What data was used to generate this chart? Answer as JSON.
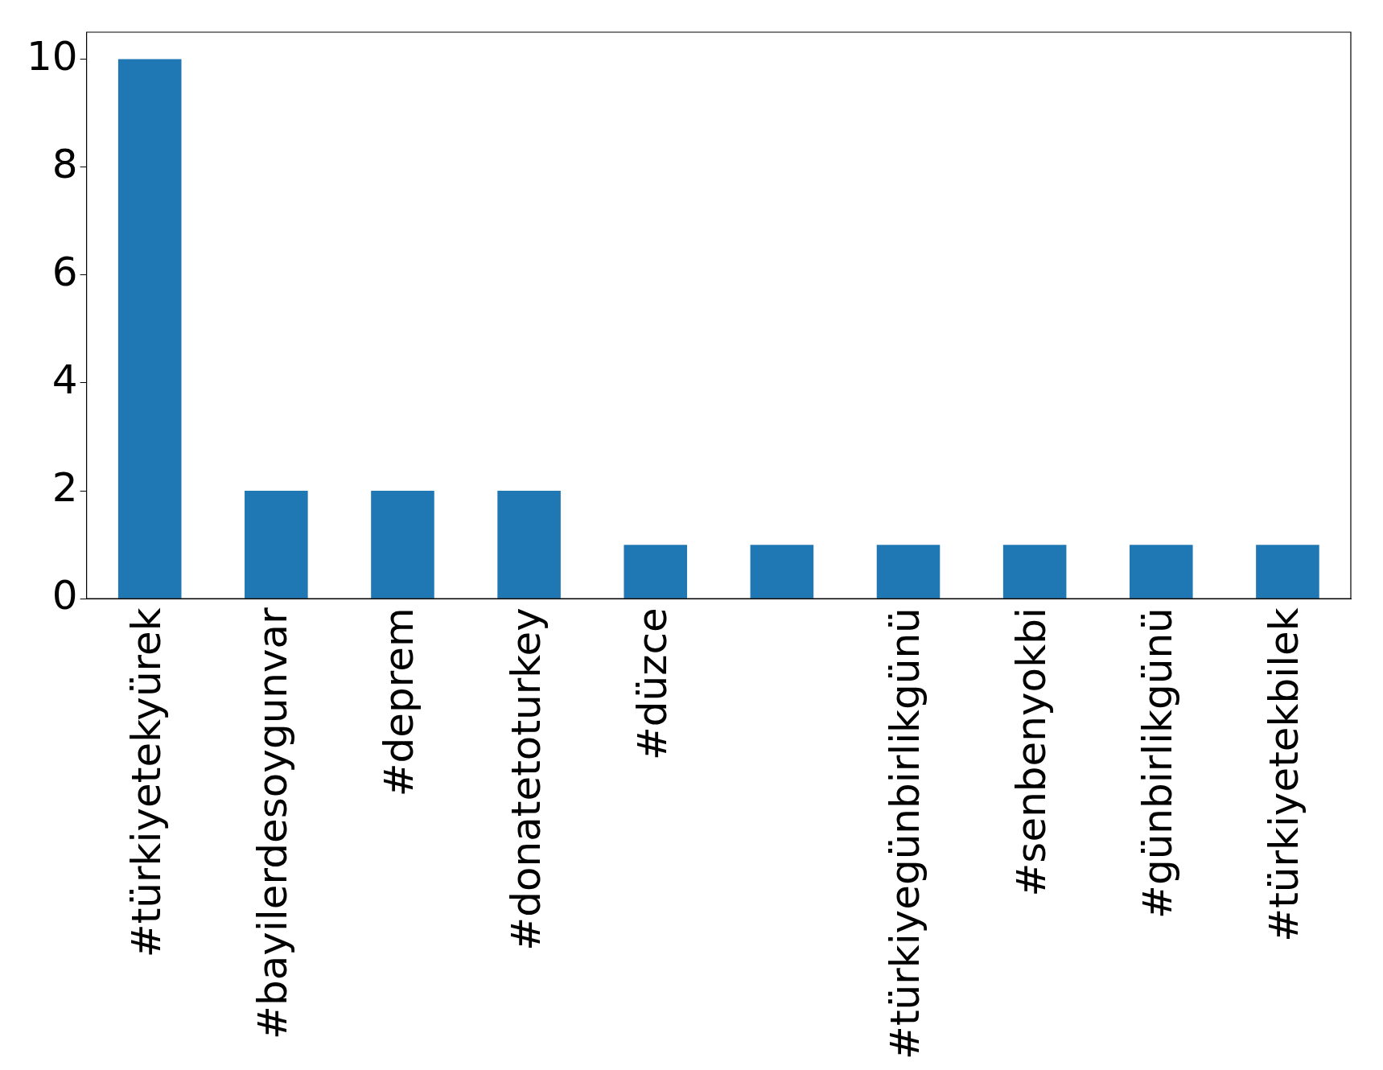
{
  "chart_data": {
    "type": "bar",
    "categories": [
      "#türkiyetekyürek",
      "#bayilerdesoygunvar",
      "#deprem",
      "#donatetoturkey",
      "#düzce",
      null,
      "#türkiyegünbirlikgünü",
      "#senbenyokbi",
      "#günbirlikgünü",
      "#türkiyetekbilek"
    ],
    "values": [
      10,
      2,
      2,
      2,
      1,
      1,
      1,
      1,
      1,
      1
    ],
    "color": "#1f77b4",
    "ylim": [
      0,
      10.5
    ],
    "yticks": [
      0,
      2,
      4,
      6,
      8,
      10
    ],
    "grid": false,
    "legend": false
  }
}
